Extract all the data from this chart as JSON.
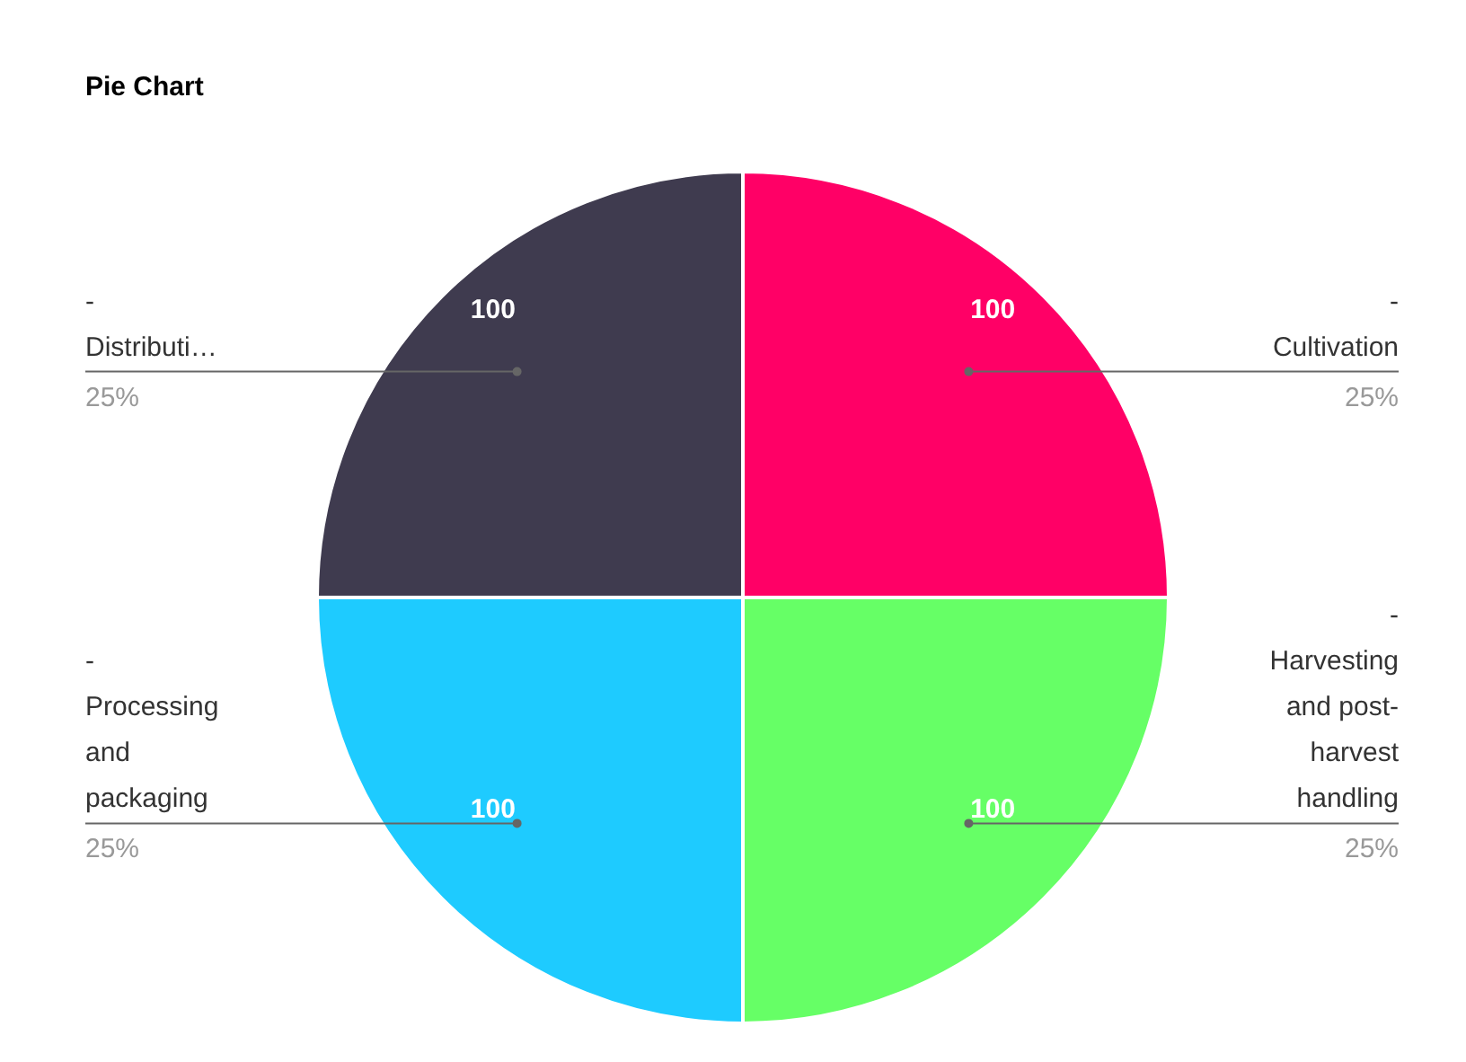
{
  "chart_data": {
    "type": "pie",
    "title": "Pie Chart",
    "categories": [
      "- Cultivation",
      "- Harvesting and post-harvest handling",
      "- Processing and packaging",
      "- Distributi…"
    ],
    "values": [
      100,
      100,
      100,
      100
    ],
    "colors": [
      "#ff0066",
      "#66ff66",
      "#1ecbff",
      "#3f3b4f"
    ],
    "data_labels": true,
    "annotations": [
      "25%",
      "25%",
      "25%",
      "25%"
    ]
  }
}
